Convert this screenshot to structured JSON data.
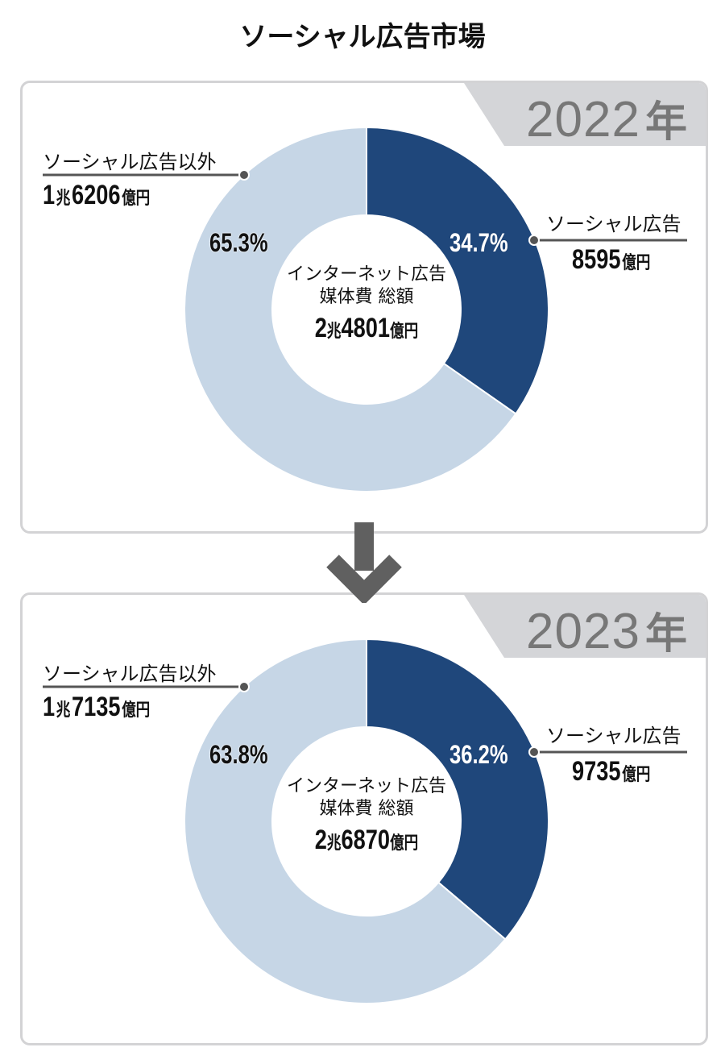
{
  "title": "ソーシャル広告市場",
  "colors": {
    "social": "#1f477b",
    "non_social": "#c6d6e6",
    "tab": "#d4d5d8",
    "year": "#777777",
    "arrow": "#606060"
  },
  "center_label_line1": "インターネット広告",
  "center_label_line2": "媒体費 総額",
  "unit_cho": "兆",
  "unit_oku": "億円",
  "chart_data": [
    {
      "type": "pie",
      "year_label": "2022",
      "year_suffix": "年",
      "total": {
        "cho": "2",
        "oku": "4801"
      },
      "series": [
        {
          "name": "ソーシャル広告",
          "value": 8595,
          "value_label": "8595",
          "percent": 34.7,
          "percent_label": "34.7%"
        },
        {
          "name": "ソーシャル広告以外",
          "value": 16206,
          "value_cho": "1",
          "value_oku": "6206",
          "percent": 65.3,
          "percent_label": "65.3%"
        }
      ]
    },
    {
      "type": "pie",
      "year_label": "2023",
      "year_suffix": "年",
      "total": {
        "cho": "2",
        "oku": "6870"
      },
      "series": [
        {
          "name": "ソーシャル広告",
          "value": 9735,
          "value_label": "9735",
          "percent": 36.2,
          "percent_label": "36.2%"
        },
        {
          "name": "ソーシャル広告以外",
          "value": 17135,
          "value_cho": "1",
          "value_oku": "7135",
          "percent": 63.8,
          "percent_label": "63.8%"
        }
      ]
    }
  ]
}
